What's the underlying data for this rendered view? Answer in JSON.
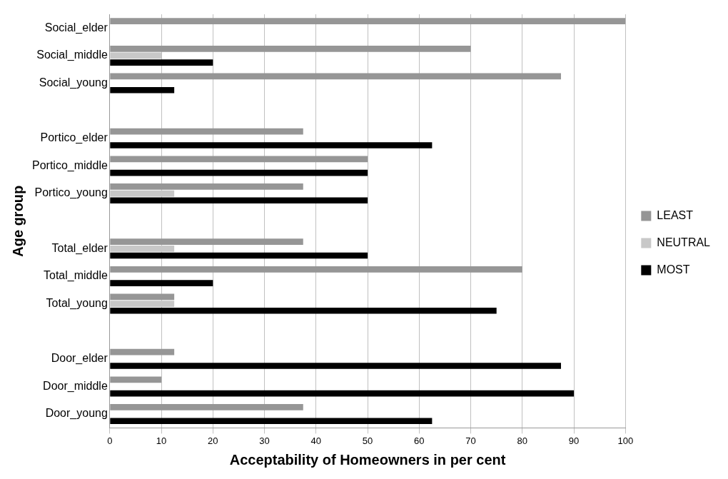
{
  "chart_data": {
    "type": "bar",
    "orientation": "horizontal",
    "xlabel": "Acceptability of Homeowners in per cent",
    "ylabel": "Age group",
    "categories": [
      "Social_elder",
      "Social_middle",
      "Social_young",
      null,
      "Portico_elder",
      "Portico_middle",
      "Portico_young",
      null,
      "Total_elder",
      "Total_middle",
      "Total_young",
      null,
      "Door_elder",
      "Door_middle",
      "Door_young"
    ],
    "series": [
      {
        "name": "LEAST",
        "color": "#969696",
        "values": [
          100,
          70,
          87.5,
          null,
          37.5,
          50,
          37.5,
          null,
          37.5,
          80,
          12.5,
          null,
          12.5,
          10,
          37.5
        ]
      },
      {
        "name": "NEUTRAL",
        "color": "#c8c8c8",
        "values": [
          null,
          10,
          null,
          null,
          null,
          null,
          12.5,
          null,
          12.5,
          null,
          12.5,
          null,
          null,
          null,
          null
        ]
      },
      {
        "name": "MOST",
        "color": "#000000",
        "values": [
          null,
          20,
          12.5,
          null,
          62.5,
          50,
          50,
          null,
          50,
          20,
          75,
          null,
          87.5,
          90,
          62.5
        ]
      }
    ],
    "xlim": [
      0,
      100
    ],
    "xticks": [
      0,
      10,
      20,
      30,
      40,
      50,
      60,
      70,
      80,
      90,
      100
    ],
    "grid": "x",
    "legend": "right"
  }
}
